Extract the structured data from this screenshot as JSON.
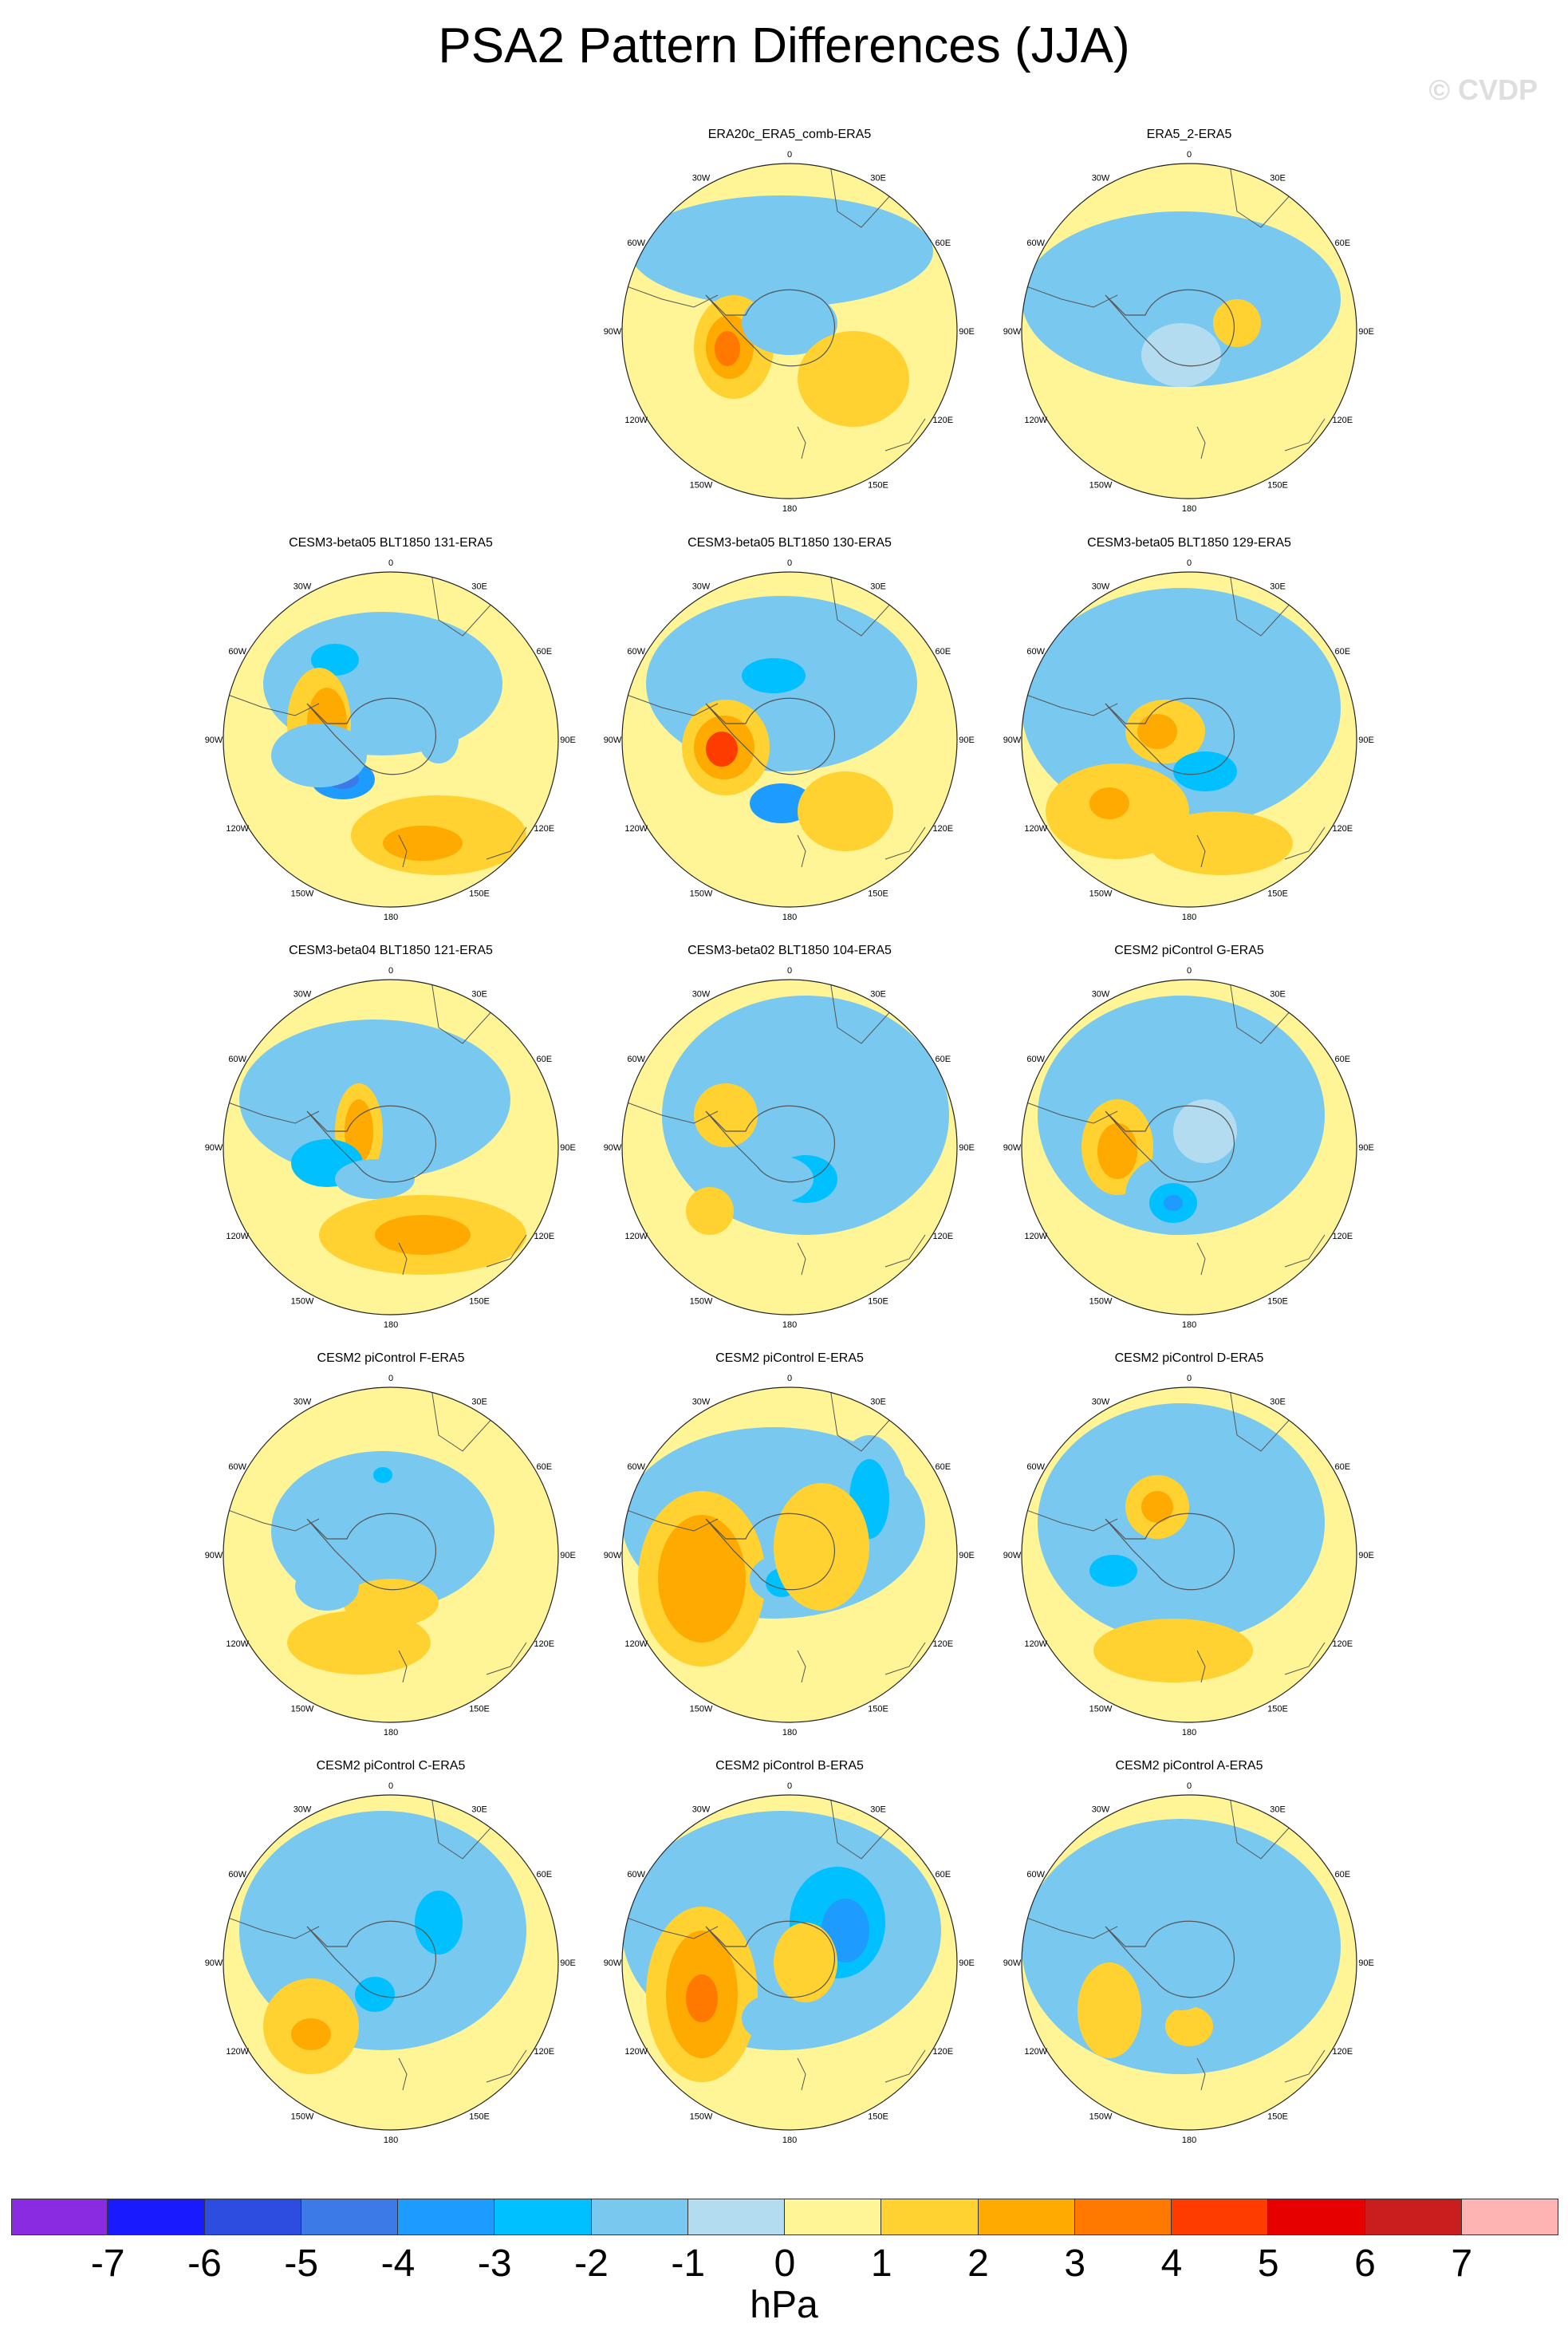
{
  "title": "PSA2 Pattern Differences (JJA)",
  "watermark": "© CVDP",
  "longitude_labels": [
    "0",
    "30E",
    "60E",
    "90E",
    "120E",
    "150E",
    "180",
    "150W",
    "120W",
    "90W",
    "60W",
    "30W"
  ],
  "colorbar": {
    "unit": "hPa",
    "ticks": [
      "-7",
      "-6",
      "-5",
      "-4",
      "-3",
      "-2",
      "-1",
      "0",
      "1",
      "2",
      "3",
      "4",
      "5",
      "6",
      "7"
    ],
    "colors": [
      "#8a2be2",
      "#1a1aff",
      "#2d4de0",
      "#3c7ae8",
      "#1e9bff",
      "#00c0ff",
      "#78c8f0",
      "#b4dcf0",
      "#fff596",
      "#ffd232",
      "#ffaa00",
      "#ff7800",
      "#ff3c00",
      "#e60000",
      "#c81e1e",
      "#ffb4b4"
    ]
  },
  "panels": [
    {
      "title": "ERA20c_ERA5_comb-ERA5"
    },
    {
      "title": "ERA5_2-ERA5"
    },
    {
      "title": "CESM3-beta05 BLT1850 131-ERA5"
    },
    {
      "title": "CESM3-beta05 BLT1850 130-ERA5"
    },
    {
      "title": "CESM3-beta05 BLT1850 129-ERA5"
    },
    {
      "title": "CESM3-beta04 BLT1850 121-ERA5"
    },
    {
      "title": "CESM3-beta02 BLT1850 104-ERA5"
    },
    {
      "title": "CESM2 piControl G-ERA5"
    },
    {
      "title": "CESM2 piControl F-ERA5"
    },
    {
      "title": "CESM2 piControl E-ERA5"
    },
    {
      "title": "CESM2 piControl D-ERA5"
    },
    {
      "title": "CESM2 piControl C-ERA5"
    },
    {
      "title": "CESM2 piControl B-ERA5"
    },
    {
      "title": "CESM2 piControl A-ERA5"
    }
  ]
}
